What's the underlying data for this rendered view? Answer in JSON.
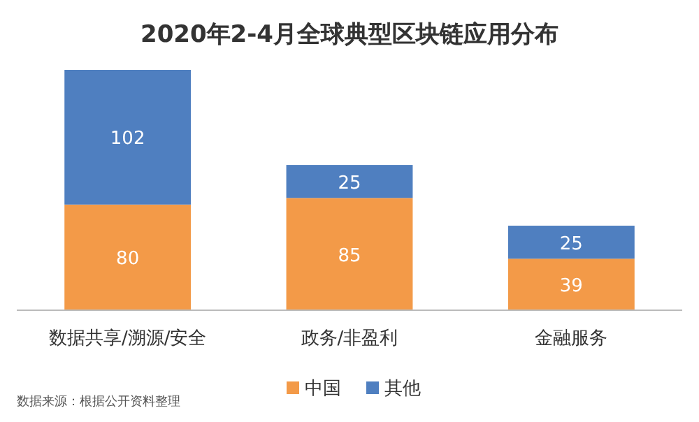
{
  "chart_data": {
    "type": "bar",
    "stacked": true,
    "title": "2020年2-4月全球典型区块链应用分布",
    "categories": [
      "数据共享/溯源/安全",
      "政务/非盈利",
      "金融服务"
    ],
    "series": [
      {
        "name": "中国",
        "color": "#f39a48",
        "values": [
          80,
          85,
          39
        ]
      },
      {
        "name": "其他",
        "color": "#4f7fc0",
        "values": [
          102,
          25,
          25
        ]
      }
    ],
    "data_labels": true,
    "legend": "bottom",
    "annotations": [
      "数据来源：根据公开资料整理"
    ]
  }
}
